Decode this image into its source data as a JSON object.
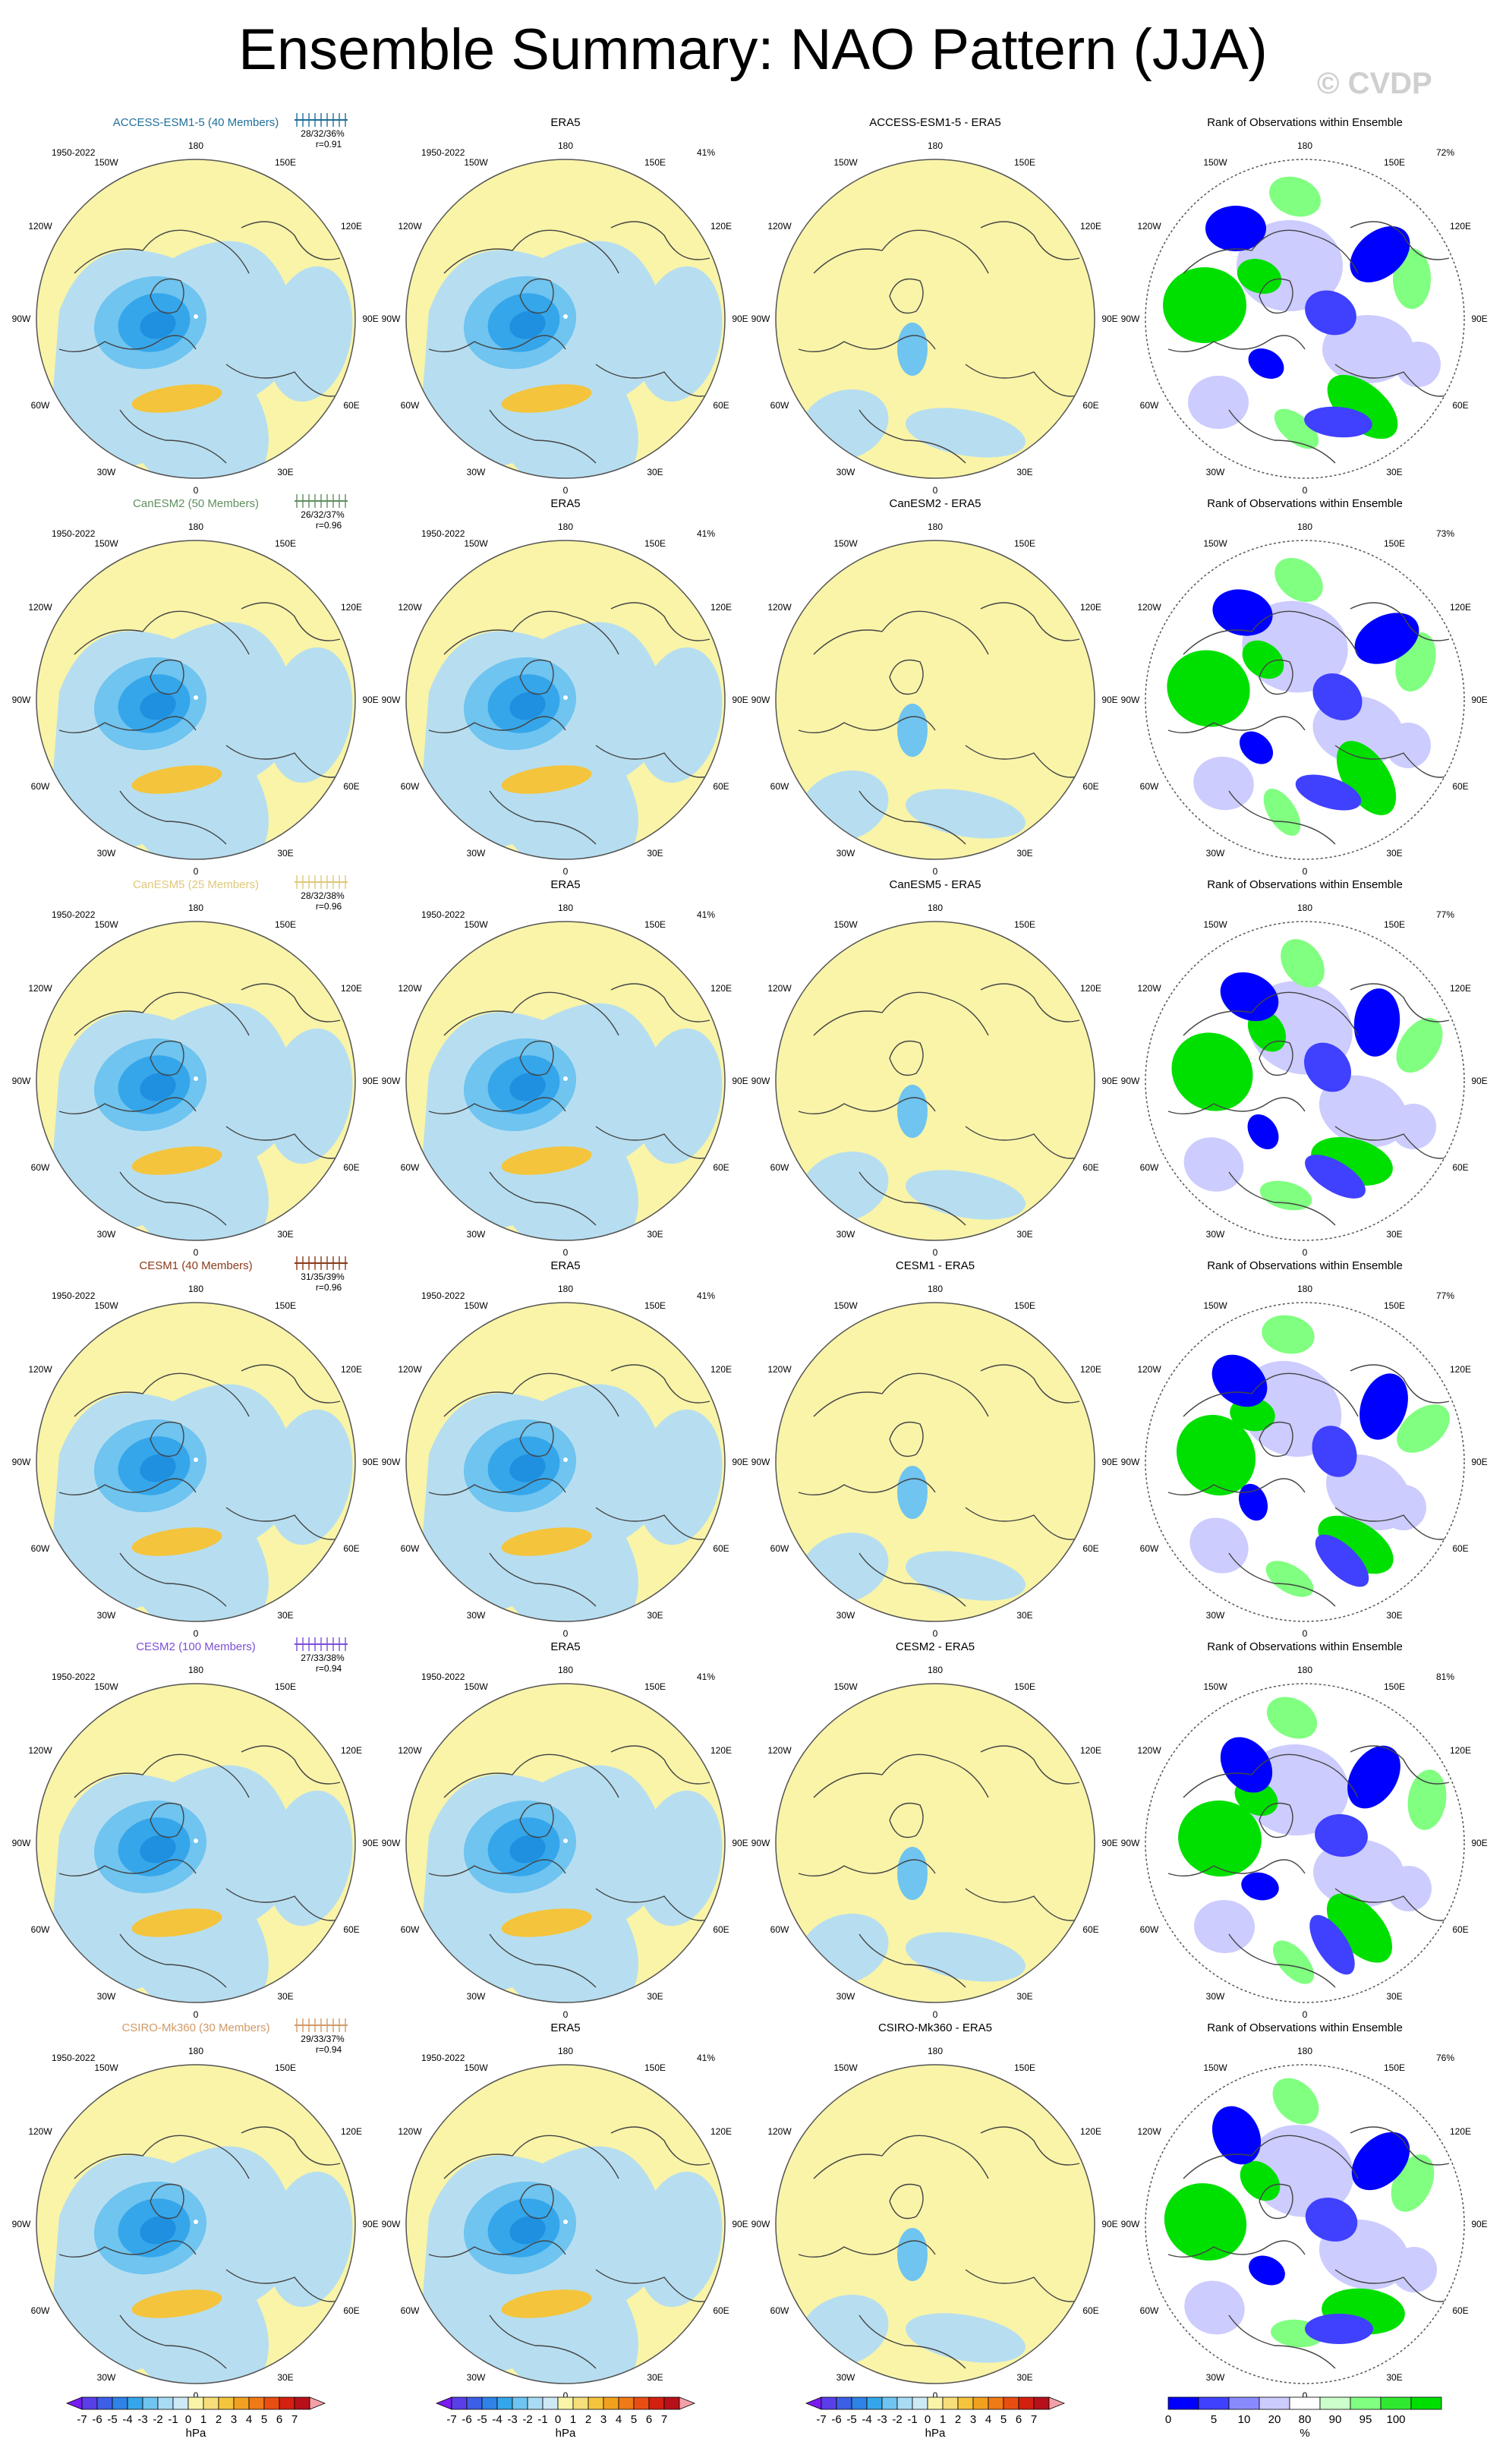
{
  "title": "Ensemble Summary: NAO Pattern (JJA)",
  "watermark": "© CVDP",
  "period": "1950-2022",
  "obs_name": "ERA5",
  "rank_title": "Rank of Observations within Ensemble",
  "lon_labels": {
    "top": "180",
    "bottom": "0",
    "left": "90W",
    "right": "90E",
    "ul1": "150W",
    "ul2": "120W",
    "ur1": "150E",
    "ur2": "120E",
    "ll1": "60W",
    "ll2": "30W",
    "lr1": "60E",
    "lr2": "30E"
  },
  "rows": [
    {
      "model": "ACCESS-ESM1-5 (40 Members)",
      "diff_title": "ACCESS-ESM1-5 - ERA5",
      "color": "#1f6f99",
      "pct": "28/32/36%",
      "r": "r=0.91",
      "obs_pct": "41%",
      "rank_pct": "72%"
    },
    {
      "model": "CanESM2 (50 Members)",
      "diff_title": "CanESM2 - ERA5",
      "color": "#5f8f5f",
      "pct": "26/32/37%",
      "r": "r=0.96",
      "obs_pct": "41%",
      "rank_pct": "73%"
    },
    {
      "model": "CanESM5 (25 Members)",
      "diff_title": "CanESM5 - ERA5",
      "color": "#e0c87a",
      "pct": "28/32/38%",
      "r": "r=0.96",
      "obs_pct": "41%",
      "rank_pct": "77%"
    },
    {
      "model": "CESM1 (40 Members)",
      "diff_title": "CESM1 - ERA5",
      "color": "#8b3a1a",
      "pct": "31/35/39%",
      "r": "r=0.96",
      "obs_pct": "41%",
      "rank_pct": "77%"
    },
    {
      "model": "CESM2 (100 Members)",
      "diff_title": "CESM2 - ERA5",
      "color": "#7b4fd6",
      "pct": "27/33/38%",
      "r": "r=0.94",
      "obs_pct": "41%",
      "rank_pct": "81%"
    },
    {
      "model": "CSIRO-Mk360 (30 Members)",
      "diff_title": "CSIRO-Mk360 - ERA5",
      "color": "#d19a66",
      "pct": "29/33/37%",
      "r": "r=0.94",
      "obs_pct": "41%",
      "rank_pct": "76%"
    }
  ],
  "colorbar_hpa": {
    "labels": [
      "-7",
      "-6",
      "-5",
      "-4",
      "-3",
      "-2",
      "-1",
      "0",
      "1",
      "2",
      "3",
      "4",
      "5",
      "6",
      "7"
    ],
    "colors": [
      "#7a1cf0",
      "#5a3ee8",
      "#3c5fe6",
      "#2f82e6",
      "#35a6ea",
      "#6fc4f0",
      "#a9dcf4",
      "#cde9f5",
      "#f9f4a8",
      "#f6de7a",
      "#f4c43c",
      "#f2a020",
      "#ef7a16",
      "#e84e12",
      "#d32010",
      "#b8101a",
      "#f4a0a8"
    ],
    "unit": "hPa"
  },
  "colorbar_rank": {
    "labels": [
      "0",
      "5",
      "10",
      "20",
      "80",
      "90",
      "95",
      "100"
    ],
    "colors": [
      "#0000ff",
      "#4040ff",
      "#8a8aff",
      "#ccccff",
      "#ffffff",
      "#ccffcc",
      "#80ff80",
      "#30e830",
      "#00e000"
    ],
    "unit": "%"
  },
  "colors": {
    "positive": "#f9f4a8",
    "negative": "#b7def0",
    "neg_mid": "#6fc4f0",
    "neg_strong": "#35a6ea",
    "pos_mid": "#f4c43c",
    "rank_low": "#0000ff",
    "rank_high": "#00e000"
  }
}
